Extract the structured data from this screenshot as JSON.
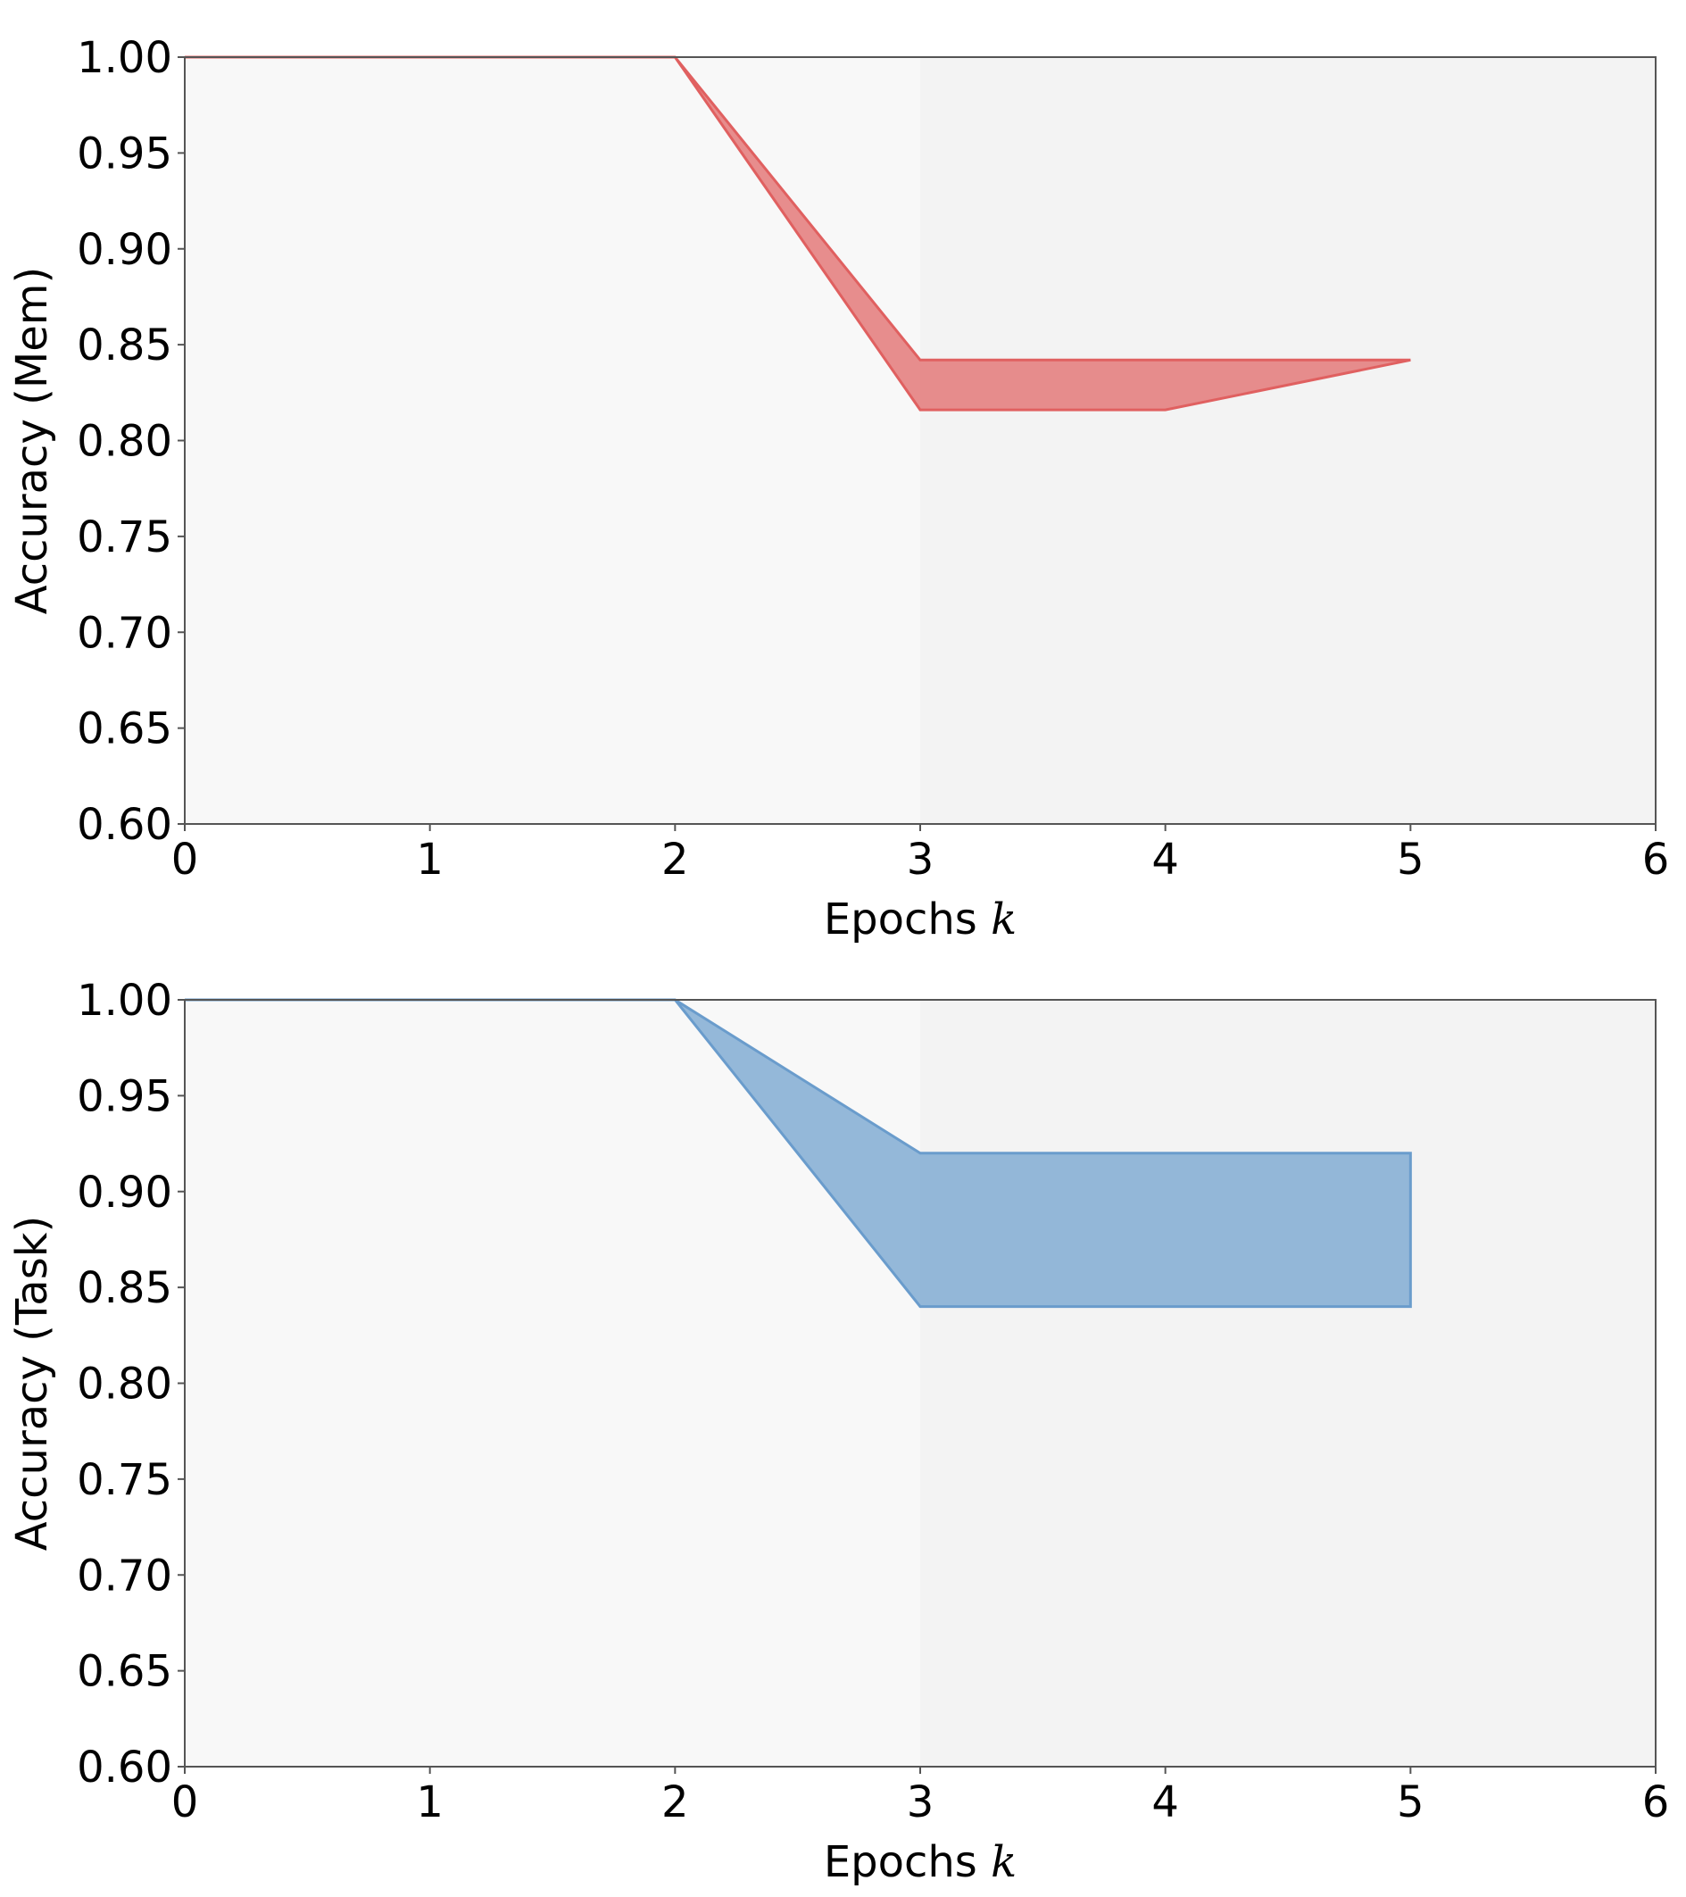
{
  "chart_data": [
    {
      "type": "area",
      "xlabel": "Epochs",
      "xlabel_var": "k",
      "ylabel": "Accuracy (Mem)",
      "xlim": [
        0,
        6
      ],
      "ylim": [
        0.6,
        1.0
      ],
      "xticks": [
        "0",
        "1",
        "2",
        "3",
        "4",
        "5",
        "6"
      ],
      "yticks": [
        "0.60",
        "0.65",
        "0.70",
        "0.75",
        "0.80",
        "0.85",
        "0.90",
        "0.95",
        "1.00"
      ],
      "grid": false,
      "shaded_region": {
        "x_start": 3,
        "x_end": 6,
        "color": "#f3f3f3"
      },
      "background": "#f8f8f8",
      "band": {
        "color": "#e06060",
        "x": [
          0,
          1,
          2,
          3,
          4,
          5
        ],
        "upper": [
          1.0,
          1.0,
          1.0,
          0.842,
          0.842,
          0.842
        ],
        "lower": [
          1.0,
          1.0,
          1.0,
          0.816,
          0.816,
          0.842
        ]
      }
    },
    {
      "type": "area",
      "xlabel": "Epochs",
      "xlabel_var": "k",
      "ylabel": "Accuracy (Task)",
      "xlim": [
        0,
        6
      ],
      "ylim": [
        0.6,
        1.0
      ],
      "xticks": [
        "0",
        "1",
        "2",
        "3",
        "4",
        "5",
        "6"
      ],
      "yticks": [
        "0.60",
        "0.65",
        "0.70",
        "0.75",
        "0.80",
        "0.85",
        "0.90",
        "0.95",
        "1.00"
      ],
      "grid": false,
      "shaded_region": {
        "x_start": 3,
        "x_end": 6,
        "color": "#f3f3f3"
      },
      "background": "#f8f8f8",
      "band": {
        "color": "#6a9ccc",
        "x": [
          0,
          1,
          2,
          3,
          4,
          5
        ],
        "upper": [
          1.0,
          1.0,
          1.0,
          0.92,
          0.92,
          0.92
        ],
        "lower": [
          1.0,
          1.0,
          1.0,
          0.84,
          0.84,
          0.84
        ]
      }
    }
  ]
}
